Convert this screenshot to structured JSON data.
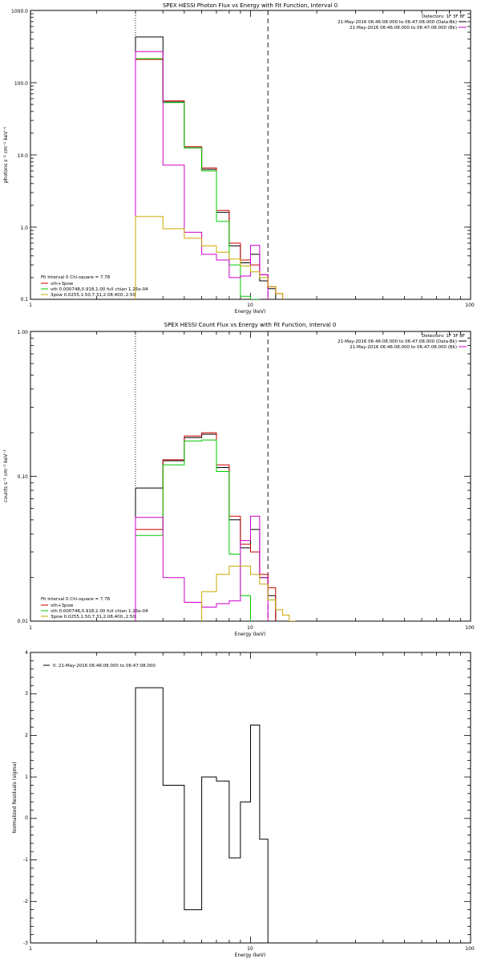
{
  "chart_data": [
    {
      "type": "line",
      "title": "SPEX HESSI Photon Flux vs Energy with Fit Function, Interval 0",
      "xlabel": "Energy (keV)",
      "ylabel": "photons s⁻¹ cm⁻² keV⁻¹",
      "xscale": "log",
      "yscale": "log",
      "xlim": [
        1,
        100
      ],
      "ylim": [
        0.1,
        1000
      ],
      "x_ticks": [
        "1",
        "10",
        "100"
      ],
      "y_ticks": [
        "0.1",
        "1.0",
        "10.0",
        "100.0",
        "1000.0"
      ],
      "ref_lines": [
        {
          "x": 3.0,
          "style": "dotted"
        },
        {
          "x": 12.0,
          "style": "dashed"
        }
      ],
      "legend_top": {
        "placement": "top-right",
        "entries": [
          {
            "text": "Detectors: 1F 3F 8F",
            "color": ""
          },
          {
            "text": "21-May-2016 06:46:08.000 to 06:47:08.000 (Data-Bk)",
            "color": "#000000"
          },
          {
            "text": "21-May-2016 06:46:08.000 to 06:47:08.000 (Bk)",
            "color": "#cc00cc"
          }
        ]
      },
      "legend_bottom": {
        "placement": "bottom-left",
        "header": "Fit Interval 0   Chi-square = 7.78",
        "entries": [
          {
            "text": "vth+3pow",
            "color": "#cc0000"
          },
          {
            "text": "vth 0.000748,0.918,1.00  full chian 1.26e-04",
            "color": "#00cc00"
          },
          {
            "text": "3pow 0.0255,1.50,7.31,2.08,400.,2.50",
            "color": "#ccaa00"
          }
        ]
      },
      "edges": [
        3,
        4,
        5,
        6,
        7,
        8,
        9,
        10,
        11,
        12,
        13,
        14,
        15
      ],
      "series": [
        {
          "color": "#000000",
          "values": [
            430,
            54,
            12.5,
            6.3,
            1.6,
            0.55,
            0.32,
            0.42,
            0.18,
            0.14,
            null,
            null
          ]
        },
        {
          "color": "#cc0000",
          "values": [
            210,
            56,
            13,
            6.6,
            1.7,
            0.6,
            0.35,
            0.3,
            0.22,
            0.15,
            0.12,
            null
          ]
        },
        {
          "color": "#00cc00",
          "values": [
            215,
            53,
            12.5,
            6.0,
            1.2,
            0.3,
            0.11,
            0.08,
            null,
            null,
            null,
            null
          ]
        },
        {
          "color": "#cc00cc",
          "values": [
            270,
            7.2,
            0.85,
            0.42,
            0.35,
            0.2,
            0.21,
            0.56,
            0.22,
            null,
            null,
            null
          ]
        },
        {
          "color": "#ccaa00",
          "values": [
            1.4,
            0.95,
            0.7,
            0.55,
            0.45,
            0.36,
            0.29,
            0.24,
            0.2,
            0.15,
            0.12,
            null
          ]
        }
      ]
    },
    {
      "type": "line",
      "title": "SPEX HESSI Count Flux vs Energy with Fit Function, Interval 0",
      "xlabel": "Energy (keV)",
      "ylabel": "counts s⁻¹ cm⁻² keV⁻¹",
      "xscale": "log",
      "yscale": "log",
      "xlim": [
        1,
        100
      ],
      "ylim": [
        0.01,
        1.0
      ],
      "x_ticks": [
        "1",
        "10",
        "100"
      ],
      "y_ticks": [
        "0.01",
        "0.10",
        "1.00"
      ],
      "ref_lines": [
        {
          "x": 3.0,
          "style": "dotted"
        },
        {
          "x": 12.0,
          "style": "dashed"
        }
      ],
      "legend_top": {
        "placement": "top-right",
        "entries": [
          {
            "text": "Detectors: 1F 3F 8F",
            "color": ""
          },
          {
            "text": "21-May-2016 06:46:08.000 to 06:47:08.000 (Data-Bk)",
            "color": "#000000"
          },
          {
            "text": "21-May-2016 06:46:08.000 to 06:47:08.000 (Bk)",
            "color": "#cc00cc"
          }
        ]
      },
      "legend_bottom": {
        "placement": "bottom-left",
        "header": "Fit Interval 0   Chi-square = 7.78",
        "entries": [
          {
            "text": "vth+3pow",
            "color": "#cc0000"
          },
          {
            "text": "vth 0.000748,0.918,1.00  full chian 1.26e-04",
            "color": "#00cc00"
          },
          {
            "text": "3pow 0.0255,1.50,7.31,2.08,400.,2.50",
            "color": "#ccaa00"
          }
        ]
      },
      "edges": [
        3,
        4,
        5,
        6,
        7,
        8,
        9,
        10,
        11,
        12,
        13,
        14,
        15,
        16
      ],
      "series": [
        {
          "color": "#000000",
          "values": [
            0.083,
            0.128,
            0.185,
            0.195,
            0.115,
            0.05,
            0.032,
            0.043,
            0.02,
            0.015,
            null,
            null,
            null
          ]
        },
        {
          "color": "#cc0000",
          "values": [
            0.043,
            0.13,
            0.19,
            0.2,
            0.12,
            0.053,
            0.034,
            0.03,
            0.021,
            0.017,
            null,
            null,
            null
          ]
        },
        {
          "color": "#00cc00",
          "values": [
            0.039,
            0.12,
            0.175,
            0.178,
            0.108,
            0.029,
            0.015,
            null,
            null,
            null,
            null,
            null,
            null
          ]
        },
        {
          "color": "#cc00cc",
          "values": [
            0.052,
            0.02,
            0.0135,
            0.0125,
            0.0132,
            0.0138,
            0.036,
            0.053,
            0.02,
            null,
            null,
            null,
            null
          ]
        },
        {
          "color": "#ccaa00",
          "values": [
            null,
            null,
            null,
            0.016,
            0.021,
            0.024,
            0.024,
            0.021,
            0.018,
            0.014,
            0.012,
            0.011,
            0.01
          ]
        }
      ]
    },
    {
      "type": "line",
      "title": "",
      "xlabel": "Energy (keV)",
      "ylabel": "Normalized Residuals (sigma)",
      "xscale": "log",
      "yscale": "linear",
      "xlim": [
        1,
        100
      ],
      "ylim": [
        -3,
        4
      ],
      "x_ticks": [
        "1",
        "10",
        "100"
      ],
      "y_ticks": [
        "-3",
        "-2",
        "-1",
        "0",
        "1",
        "2",
        "3",
        "4"
      ],
      "legend_top": {
        "placement": "top-left",
        "entries": [
          {
            "text": "0. 21-May-2016 06:46:08.000 to 06:47:08.000",
            "color": "#000000"
          }
        ]
      },
      "edges": [
        3,
        4,
        5,
        6,
        7,
        8,
        9,
        10,
        11,
        12
      ],
      "series": [
        {
          "color": "#000000",
          "values": [
            3.15,
            0.8,
            -2.2,
            1.0,
            0.9,
            -0.95,
            0.4,
            2.25,
            -0.5
          ]
        }
      ]
    }
  ]
}
